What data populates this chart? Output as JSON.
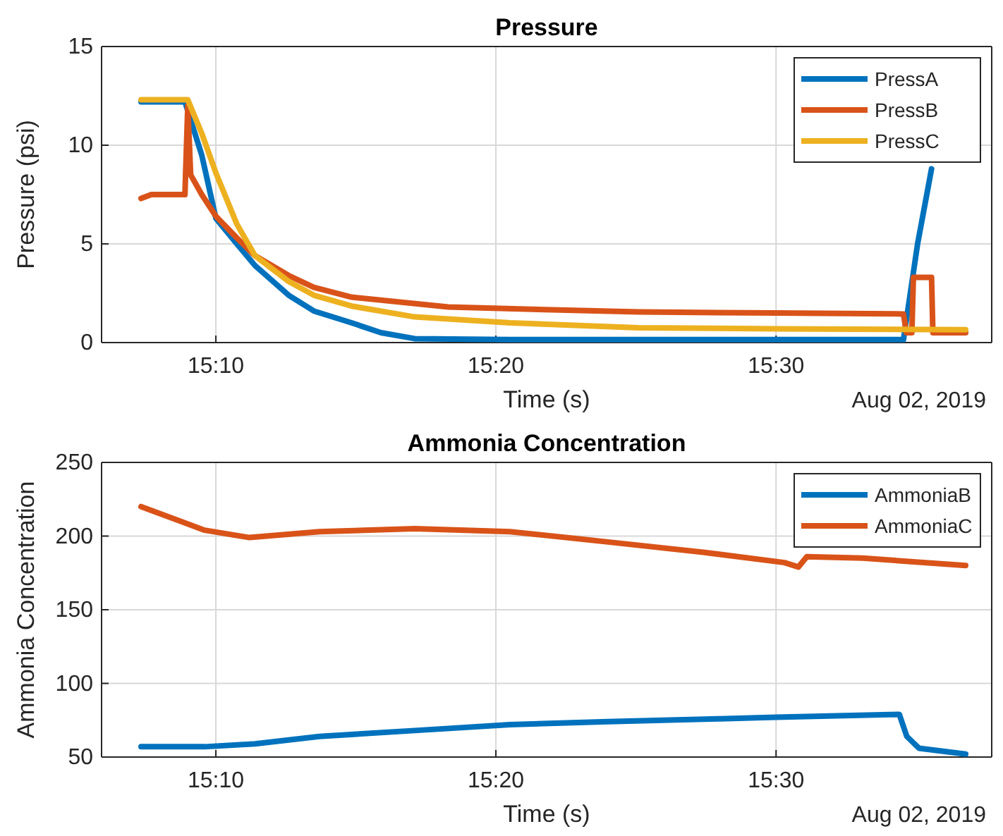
{
  "chart_data": [
    {
      "type": "line",
      "title": "Pressure",
      "xlabel": "Time (s)",
      "ylabel": "Pressure (psi)",
      "xlim": [
        15.0987,
        15.6283
      ],
      "xticks": [
        {
          "value": 15.1667,
          "label": "15:10"
        },
        {
          "value": 15.3333,
          "label": "15:20"
        },
        {
          "value": 15.5,
          "label": "15:30"
        }
      ],
      "ylim": [
        0,
        15
      ],
      "yticks": [
        0,
        5,
        10,
        15
      ],
      "grid": true,
      "legend": "top right",
      "annotations": [
        "Aug 02, 2019"
      ],
      "series": [
        {
          "name": "PressA",
          "color": "#0072bd",
          "x": [
            15.1222,
            15.1483,
            15.1583,
            15.1667,
            15.1792,
            15.19,
            15.21,
            15.225,
            15.2475,
            15.265,
            15.285,
            15.3417,
            15.4183,
            15.5,
            15.5758,
            15.5842,
            15.5925
          ],
          "values": [
            12.2,
            12.2,
            9.5,
            6.3,
            5.0,
            3.9,
            2.4,
            1.6,
            1.0,
            0.5,
            0.2,
            0.15,
            0.15,
            0.15,
            0.15,
            5,
            8.8
          ]
        },
        {
          "name": "PressB",
          "color": "#d95319",
          "x": [
            15.1222,
            15.1283,
            15.1333,
            15.1483,
            15.15,
            15.1517,
            15.1583,
            15.1667,
            15.1792,
            15.19,
            15.21,
            15.225,
            15.2475,
            15.305,
            15.4183,
            15.5,
            15.5758,
            15.5775,
            15.5808,
            15.5817,
            15.5925,
            15.5933,
            15.6128
          ],
          "values": [
            7.3,
            7.5,
            7.5,
            7.5,
            12.0,
            8.5,
            7.5,
            6.4,
            5.3,
            4.4,
            3.4,
            2.8,
            2.3,
            1.8,
            1.55,
            1.5,
            1.45,
            0.5,
            0.5,
            3.3,
            3.3,
            0.5,
            0.5
          ]
        },
        {
          "name": "PressC",
          "color": "#edb120",
          "x": [
            15.1222,
            15.15,
            15.1583,
            15.1667,
            15.1792,
            15.19,
            15.21,
            15.225,
            15.2475,
            15.285,
            15.3417,
            15.4183,
            15.5,
            15.6128
          ],
          "values": [
            12.3,
            12.3,
            10.6,
            8.6,
            6.0,
            4.4,
            3.1,
            2.4,
            1.85,
            1.3,
            1.0,
            0.75,
            0.7,
            0.65
          ]
        }
      ]
    },
    {
      "type": "line",
      "title": "Ammonia Concentration",
      "xlabel": "Time (s)",
      "ylabel": "Ammonia Concentration",
      "xlim": [
        15.0987,
        15.6283
      ],
      "xticks": [
        {
          "value": 15.1667,
          "label": "15:10"
        },
        {
          "value": 15.3333,
          "label": "15:20"
        },
        {
          "value": 15.5,
          "label": "15:30"
        }
      ],
      "ylim": [
        50,
        250
      ],
      "yticks": [
        50,
        100,
        150,
        200,
        250
      ],
      "grid": true,
      "legend": "top right",
      "annotations": [
        "Aug 02, 2019"
      ],
      "series": [
        {
          "name": "AmmoniaB",
          "color": "#0072bd",
          "x": [
            15.1222,
            15.16,
            15.19,
            15.2283,
            15.285,
            15.3417,
            15.4,
            15.4667,
            15.5,
            15.5733,
            15.5778,
            15.585,
            15.6128
          ],
          "values": [
            57,
            57,
            59,
            64,
            68,
            72,
            74,
            76,
            77,
            79,
            64,
            56,
            52
          ]
        },
        {
          "name": "AmmoniaC",
          "color": "#d95319",
          "x": [
            15.1222,
            15.16,
            15.1867,
            15.2283,
            15.285,
            15.3417,
            15.4,
            15.4567,
            15.505,
            15.5133,
            15.5183,
            15.5517,
            15.6128
          ],
          "values": [
            220,
            204,
            199,
            203,
            205,
            203,
            196,
            189,
            182,
            179,
            186,
            185,
            180
          ]
        }
      ]
    }
  ]
}
